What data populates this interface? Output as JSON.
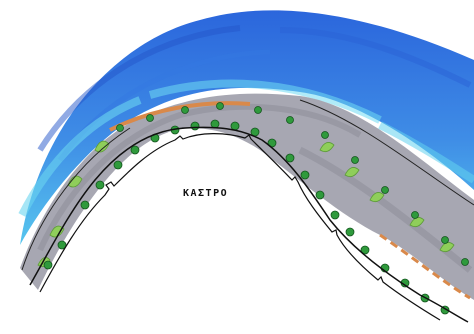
{
  "drawing": {
    "label": "ΚΑΣΤΡΟ",
    "colors": {
      "sea_deep": "#2f6fe0",
      "sea_mid": "#3d8be8",
      "sea_light": "#5fd0ee",
      "wall_grey": "#a9a9b3",
      "wall_dark": "#8c8c97",
      "brick_orange": "#d9894a",
      "leaf_green": "#2f9a3c",
      "leaf_light": "#8fce5a",
      "outline": "#111111"
    }
  }
}
